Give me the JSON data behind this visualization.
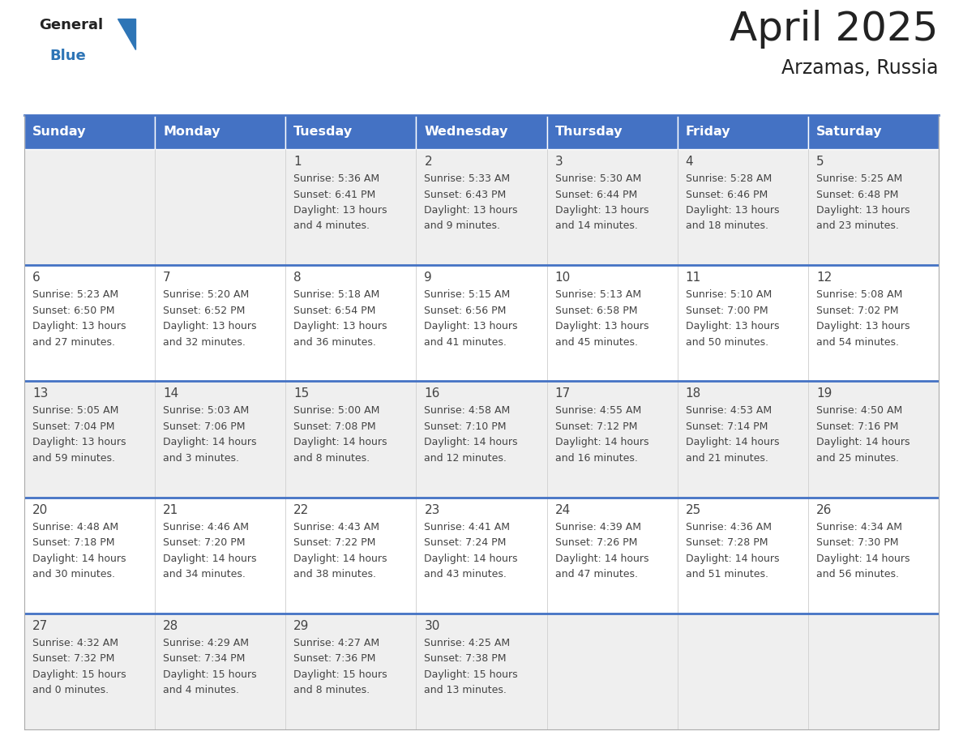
{
  "title": "April 2025",
  "subtitle": "Arzamas, Russia",
  "header_bg": "#4472C4",
  "header_text_color": "#FFFFFF",
  "row_bg_even": "#EFEFEF",
  "row_bg_odd": "#FFFFFF",
  "day_names": [
    "Sunday",
    "Monday",
    "Tuesday",
    "Wednesday",
    "Thursday",
    "Friday",
    "Saturday"
  ],
  "calendar": [
    [
      {
        "day": "",
        "info": ""
      },
      {
        "day": "",
        "info": ""
      },
      {
        "day": "1",
        "info": "Sunrise: 5:36 AM\nSunset: 6:41 PM\nDaylight: 13 hours\nand 4 minutes."
      },
      {
        "day": "2",
        "info": "Sunrise: 5:33 AM\nSunset: 6:43 PM\nDaylight: 13 hours\nand 9 minutes."
      },
      {
        "day": "3",
        "info": "Sunrise: 5:30 AM\nSunset: 6:44 PM\nDaylight: 13 hours\nand 14 minutes."
      },
      {
        "day": "4",
        "info": "Sunrise: 5:28 AM\nSunset: 6:46 PM\nDaylight: 13 hours\nand 18 minutes."
      },
      {
        "day": "5",
        "info": "Sunrise: 5:25 AM\nSunset: 6:48 PM\nDaylight: 13 hours\nand 23 minutes."
      }
    ],
    [
      {
        "day": "6",
        "info": "Sunrise: 5:23 AM\nSunset: 6:50 PM\nDaylight: 13 hours\nand 27 minutes."
      },
      {
        "day": "7",
        "info": "Sunrise: 5:20 AM\nSunset: 6:52 PM\nDaylight: 13 hours\nand 32 minutes."
      },
      {
        "day": "8",
        "info": "Sunrise: 5:18 AM\nSunset: 6:54 PM\nDaylight: 13 hours\nand 36 minutes."
      },
      {
        "day": "9",
        "info": "Sunrise: 5:15 AM\nSunset: 6:56 PM\nDaylight: 13 hours\nand 41 minutes."
      },
      {
        "day": "10",
        "info": "Sunrise: 5:13 AM\nSunset: 6:58 PM\nDaylight: 13 hours\nand 45 minutes."
      },
      {
        "day": "11",
        "info": "Sunrise: 5:10 AM\nSunset: 7:00 PM\nDaylight: 13 hours\nand 50 minutes."
      },
      {
        "day": "12",
        "info": "Sunrise: 5:08 AM\nSunset: 7:02 PM\nDaylight: 13 hours\nand 54 minutes."
      }
    ],
    [
      {
        "day": "13",
        "info": "Sunrise: 5:05 AM\nSunset: 7:04 PM\nDaylight: 13 hours\nand 59 minutes."
      },
      {
        "day": "14",
        "info": "Sunrise: 5:03 AM\nSunset: 7:06 PM\nDaylight: 14 hours\nand 3 minutes."
      },
      {
        "day": "15",
        "info": "Sunrise: 5:00 AM\nSunset: 7:08 PM\nDaylight: 14 hours\nand 8 minutes."
      },
      {
        "day": "16",
        "info": "Sunrise: 4:58 AM\nSunset: 7:10 PM\nDaylight: 14 hours\nand 12 minutes."
      },
      {
        "day": "17",
        "info": "Sunrise: 4:55 AM\nSunset: 7:12 PM\nDaylight: 14 hours\nand 16 minutes."
      },
      {
        "day": "18",
        "info": "Sunrise: 4:53 AM\nSunset: 7:14 PM\nDaylight: 14 hours\nand 21 minutes."
      },
      {
        "day": "19",
        "info": "Sunrise: 4:50 AM\nSunset: 7:16 PM\nDaylight: 14 hours\nand 25 minutes."
      }
    ],
    [
      {
        "day": "20",
        "info": "Sunrise: 4:48 AM\nSunset: 7:18 PM\nDaylight: 14 hours\nand 30 minutes."
      },
      {
        "day": "21",
        "info": "Sunrise: 4:46 AM\nSunset: 7:20 PM\nDaylight: 14 hours\nand 34 minutes."
      },
      {
        "day": "22",
        "info": "Sunrise: 4:43 AM\nSunset: 7:22 PM\nDaylight: 14 hours\nand 38 minutes."
      },
      {
        "day": "23",
        "info": "Sunrise: 4:41 AM\nSunset: 7:24 PM\nDaylight: 14 hours\nand 43 minutes."
      },
      {
        "day": "24",
        "info": "Sunrise: 4:39 AM\nSunset: 7:26 PM\nDaylight: 14 hours\nand 47 minutes."
      },
      {
        "day": "25",
        "info": "Sunrise: 4:36 AM\nSunset: 7:28 PM\nDaylight: 14 hours\nand 51 minutes."
      },
      {
        "day": "26",
        "info": "Sunrise: 4:34 AM\nSunset: 7:30 PM\nDaylight: 14 hours\nand 56 minutes."
      }
    ],
    [
      {
        "day": "27",
        "info": "Sunrise: 4:32 AM\nSunset: 7:32 PM\nDaylight: 15 hours\nand 0 minutes."
      },
      {
        "day": "28",
        "info": "Sunrise: 4:29 AM\nSunset: 7:34 PM\nDaylight: 15 hours\nand 4 minutes."
      },
      {
        "day": "29",
        "info": "Sunrise: 4:27 AM\nSunset: 7:36 PM\nDaylight: 15 hours\nand 8 minutes."
      },
      {
        "day": "30",
        "info": "Sunrise: 4:25 AM\nSunset: 7:38 PM\nDaylight: 15 hours\nand 13 minutes."
      },
      {
        "day": "",
        "info": ""
      },
      {
        "day": "",
        "info": ""
      },
      {
        "day": "",
        "info": ""
      }
    ]
  ],
  "logo_text_general": "General",
  "logo_text_blue": "Blue",
  "logo_triangle_color": "#2E75B6",
  "logo_general_color": "#222222",
  "logo_blue_color": "#2E75B6",
  "cell_text_color": "#444444",
  "divider_color": "#4472C4",
  "title_color": "#222222",
  "title_fontsize": 36,
  "subtitle_fontsize": 17,
  "header_fontsize": 11.5,
  "day_num_fontsize": 11,
  "cell_info_fontsize": 9
}
